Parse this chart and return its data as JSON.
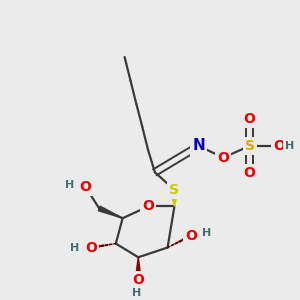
{
  "bg_color": "#ebebeb",
  "colors": {
    "C": "#3a3a3a",
    "O": "#ee0000",
    "N": "#0000cc",
    "S_thio": "#cccc00",
    "S_sulfo": "#ddaa00",
    "H": "#407070",
    "bond": "#3a3a3a"
  }
}
